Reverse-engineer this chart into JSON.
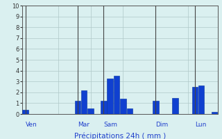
{
  "title": "Précipitations 24h ( mm )",
  "background_color": "#daf0f0",
  "grid_color": "#b0c8c8",
  "bar_color": "#1040d0",
  "bar_edge_color": "#0030a0",
  "ylim": [
    0,
    10
  ],
  "yticks": [
    0,
    1,
    2,
    3,
    4,
    5,
    6,
    7,
    8,
    9,
    10
  ],
  "day_labels": [
    "Ven",
    "Mar",
    "Sam",
    "Dim",
    "Lun"
  ],
  "day_positions": [
    0.5,
    8.5,
    12.5,
    20.5,
    26.5
  ],
  "num_bars": 30,
  "bar_values": [
    0.4,
    0,
    0,
    0,
    0,
    0,
    0,
    0,
    1.2,
    2.2,
    0.5,
    0,
    1.2,
    3.3,
    3.5,
    1.4,
    0.5,
    0,
    0,
    0,
    1.2,
    0,
    0,
    1.5,
    0,
    0,
    2.5,
    2.6,
    0,
    0.2
  ],
  "xlabel_color": "#2040cc",
  "tick_color": "#333333",
  "axis_line_color": "#555555",
  "day_line_color": "#444444",
  "figsize": [
    3.2,
    2.0
  ],
  "dpi": 100
}
